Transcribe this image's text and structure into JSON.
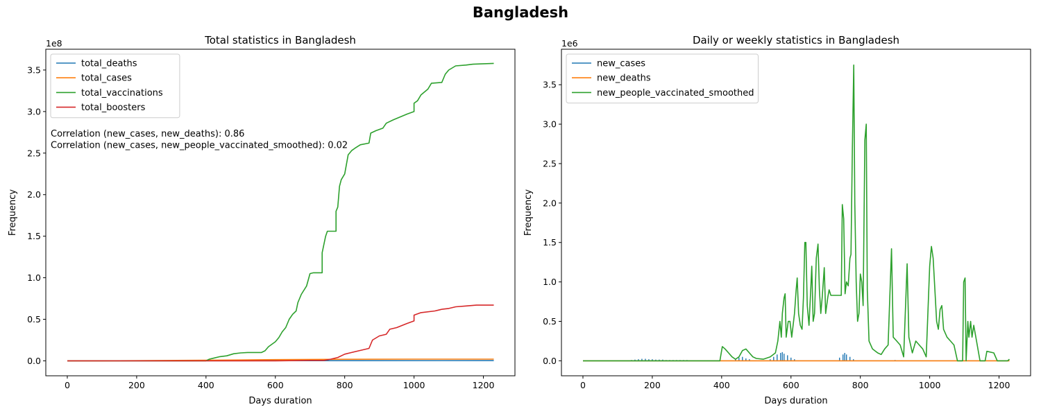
{
  "suptitle": "Bangladesh",
  "colors": {
    "blue": "#1f77b4",
    "orange": "#ff7f0e",
    "green": "#2ca02c",
    "red": "#d62728"
  },
  "chart_data": [
    {
      "type": "line",
      "title": "Total statistics in Bangladesh",
      "xlabel": "Days duration",
      "ylabel": "Frequency",
      "y_scale_label": "1e8",
      "xlim": [
        -62,
        1291
      ],
      "ylim": [
        -0.18,
        3.75
      ],
      "xticks": [
        0,
        200,
        400,
        600,
        800,
        1000,
        1200
      ],
      "yticks": [
        0.0,
        0.5,
        1.0,
        1.5,
        2.0,
        2.5,
        3.0,
        3.5
      ],
      "grid": false,
      "legend_position": "upper-left",
      "annotations": [
        "Correlation (new_cases, new_deaths): 0.86",
        "Correlation (new_cases, new_people_vaccinated_smoothed): 0.02"
      ],
      "series": [
        {
          "name": "total_deaths",
          "color": "#1f77b4",
          "points": [
            [
              0,
              0
            ],
            [
              1230,
              0.003
            ]
          ]
        },
        {
          "name": "total_cases",
          "color": "#ff7f0e",
          "points": [
            [
              0,
              0
            ],
            [
              100,
              0.0005
            ],
            [
              200,
              0.002
            ],
            [
              400,
              0.007
            ],
            [
              500,
              0.01
            ],
            [
              600,
              0.014
            ],
            [
              800,
              0.019
            ],
            [
              1000,
              0.02
            ],
            [
              1230,
              0.02
            ]
          ]
        },
        {
          "name": "total_vaccinations",
          "color": "#2ca02c",
          "points": [
            [
              0,
              0
            ],
            [
              400,
              0
            ],
            [
              410,
              0.02
            ],
            [
              420,
              0.03
            ],
            [
              440,
              0.05
            ],
            [
              460,
              0.06
            ],
            [
              480,
              0.085
            ],
            [
              500,
              0.095
            ],
            [
              520,
              0.1
            ],
            [
              560,
              0.1
            ],
            [
              570,
              0.12
            ],
            [
              580,
              0.17
            ],
            [
              600,
              0.23
            ],
            [
              610,
              0.28
            ],
            [
              620,
              0.35
            ],
            [
              630,
              0.4
            ],
            [
              640,
              0.5
            ],
            [
              650,
              0.56
            ],
            [
              660,
              0.6
            ],
            [
              665,
              0.7
            ],
            [
              675,
              0.8
            ],
            [
              690,
              0.9
            ],
            [
              700,
              1.05
            ],
            [
              710,
              1.06
            ],
            [
              735,
              1.06
            ],
            [
              735,
              1.3
            ],
            [
              740,
              1.4
            ],
            [
              745,
              1.5
            ],
            [
              750,
              1.56
            ],
            [
              775,
              1.56
            ],
            [
              775,
              1.8
            ],
            [
              780,
              1.85
            ],
            [
              785,
              2.1
            ],
            [
              790,
              2.18
            ],
            [
              800,
              2.25
            ],
            [
              810,
              2.48
            ],
            [
              820,
              2.53
            ],
            [
              830,
              2.56
            ],
            [
              845,
              2.6
            ],
            [
              870,
              2.62
            ],
            [
              875,
              2.74
            ],
            [
              890,
              2.77
            ],
            [
              910,
              2.8
            ],
            [
              920,
              2.86
            ],
            [
              940,
              2.9
            ],
            [
              980,
              2.97
            ],
            [
              1000,
              3.0
            ],
            [
              1000,
              3.1
            ],
            [
              1010,
              3.13
            ],
            [
              1020,
              3.2
            ],
            [
              1040,
              3.27
            ],
            [
              1050,
              3.34
            ],
            [
              1080,
              3.35
            ],
            [
              1090,
              3.45
            ],
            [
              1100,
              3.5
            ],
            [
              1120,
              3.55
            ],
            [
              1150,
              3.56
            ],
            [
              1170,
              3.57
            ],
            [
              1230,
              3.58
            ]
          ]
        },
        {
          "name": "total_boosters",
          "color": "#d62728",
          "points": [
            [
              0,
              0
            ],
            [
              600,
              0
            ],
            [
              700,
              0.005
            ],
            [
              740,
              0.005
            ],
            [
              760,
              0.02
            ],
            [
              780,
              0.04
            ],
            [
              800,
              0.08
            ],
            [
              820,
              0.1
            ],
            [
              840,
              0.12
            ],
            [
              870,
              0.15
            ],
            [
              880,
              0.25
            ],
            [
              900,
              0.3
            ],
            [
              920,
              0.32
            ],
            [
              930,
              0.38
            ],
            [
              950,
              0.4
            ],
            [
              980,
              0.45
            ],
            [
              1000,
              0.48
            ],
            [
              1000,
              0.55
            ],
            [
              1020,
              0.58
            ],
            [
              1060,
              0.6
            ],
            [
              1080,
              0.62
            ],
            [
              1100,
              0.63
            ],
            [
              1120,
              0.65
            ],
            [
              1150,
              0.66
            ],
            [
              1180,
              0.67
            ],
            [
              1230,
              0.67
            ]
          ]
        }
      ]
    },
    {
      "type": "line",
      "title": "Daily or weekly statistics in Bangladesh",
      "xlabel": "Days duration",
      "ylabel": "Frequency",
      "y_scale_label": "1e6",
      "xlim": [
        -62,
        1291
      ],
      "ylim": [
        -0.19,
        3.95
      ],
      "xticks": [
        0,
        200,
        400,
        600,
        800,
        1000,
        1200
      ],
      "yticks": [
        0.0,
        0.5,
        1.0,
        1.5,
        2.0,
        2.5,
        3.0,
        3.5
      ],
      "grid": false,
      "legend_position": "upper-left",
      "series": [
        {
          "name": "new_cases",
          "color": "#1f77b4",
          "spikes": [
            [
              140,
              0.01
            ],
            [
              150,
              0.015
            ],
            [
              160,
              0.02
            ],
            [
              170,
              0.025
            ],
            [
              180,
              0.025
            ],
            [
              190,
              0.02
            ],
            [
              200,
              0.02
            ],
            [
              210,
              0.015
            ],
            [
              220,
              0.015
            ],
            [
              230,
              0.015
            ],
            [
              240,
              0.01
            ],
            [
              250,
              0.01
            ],
            [
              260,
              0.01
            ],
            [
              270,
              0.01
            ],
            [
              280,
              0.01
            ],
            [
              290,
              0.01
            ],
            [
              300,
              0.01
            ],
            [
              320,
              0.005
            ],
            [
              340,
              0.005
            ],
            [
              360,
              0.005
            ],
            [
              380,
              0.005
            ],
            [
              440,
              0.02
            ],
            [
              450,
              0.04
            ],
            [
              460,
              0.05
            ],
            [
              470,
              0.03
            ],
            [
              480,
              0.02
            ],
            [
              540,
              0.02
            ],
            [
              550,
              0.05
            ],
            [
              560,
              0.08
            ],
            [
              570,
              0.1
            ],
            [
              575,
              0.11
            ],
            [
              580,
              0.09
            ],
            [
              590,
              0.07
            ],
            [
              600,
              0.04
            ],
            [
              610,
              0.02
            ],
            [
              740,
              0.04
            ],
            [
              750,
              0.08
            ],
            [
              755,
              0.1
            ],
            [
              760,
              0.08
            ],
            [
              770,
              0.05
            ],
            [
              780,
              0.02
            ],
            [
              900,
              0.01
            ],
            [
              920,
              0.005
            ],
            [
              1100,
              0.005
            ]
          ]
        },
        {
          "name": "new_deaths",
          "color": "#ff7f0e",
          "points": [
            [
              0,
              0
            ],
            [
              1230,
              0
            ]
          ]
        },
        {
          "name": "new_people_vaccinated_smoothed",
          "color": "#2ca02c",
          "points": [
            [
              0,
              0
            ],
            [
              395,
              0
            ],
            [
              402,
              0.18
            ],
            [
              410,
              0.15
            ],
            [
              420,
              0.1
            ],
            [
              430,
              0.05
            ],
            [
              440,
              0.02
            ],
            [
              450,
              0.05
            ],
            [
              460,
              0.13
            ],
            [
              470,
              0.15
            ],
            [
              480,
              0.1
            ],
            [
              490,
              0.05
            ],
            [
              500,
              0.03
            ],
            [
              520,
              0.02
            ],
            [
              540,
              0.05
            ],
            [
              555,
              0.1
            ],
            [
              562,
              0.25
            ],
            [
              568,
              0.5
            ],
            [
              572,
              0.3
            ],
            [
              575,
              0.6
            ],
            [
              580,
              0.8
            ],
            [
              583,
              0.85
            ],
            [
              586,
              0.3
            ],
            [
              592,
              0.5
            ],
            [
              597,
              0.5
            ],
            [
              602,
              0.3
            ],
            [
              610,
              0.6
            ],
            [
              615,
              0.9
            ],
            [
              618,
              1.05
            ],
            [
              622,
              0.6
            ],
            [
              627,
              0.45
            ],
            [
              632,
              0.4
            ],
            [
              636,
              0.8
            ],
            [
              640,
              1.5
            ],
            [
              643,
              1.5
            ],
            [
              647,
              0.7
            ],
            [
              652,
              0.45
            ],
            [
              657,
              0.9
            ],
            [
              660,
              1.2
            ],
            [
              664,
              0.5
            ],
            [
              668,
              0.6
            ],
            [
              673,
              1.3
            ],
            [
              678,
              1.48
            ],
            [
              682,
              0.9
            ],
            [
              686,
              0.6
            ],
            [
              690,
              0.8
            ],
            [
              696,
              1.18
            ],
            [
              700,
              0.6
            ],
            [
              706,
              0.8
            ],
            [
              710,
              0.9
            ],
            [
              715,
              0.83
            ],
            [
              745,
              0.83
            ],
            [
              748,
              1.98
            ],
            [
              752,
              1.8
            ],
            [
              756,
              0.85
            ],
            [
              760,
              1.0
            ],
            [
              765,
              0.95
            ],
            [
              770,
              1.3
            ],
            [
              773,
              1.35
            ],
            [
              777,
              2.7
            ],
            [
              781,
              3.75
            ],
            [
              784,
              2.0
            ],
            [
              788,
              1.0
            ],
            [
              792,
              0.5
            ],
            [
              796,
              0.6
            ],
            [
              800,
              1.1
            ],
            [
              804,
              1.0
            ],
            [
              808,
              0.7
            ],
            [
              813,
              2.8
            ],
            [
              817,
              3.0
            ],
            [
              820,
              0.9
            ],
            [
              825,
              0.25
            ],
            [
              835,
              0.15
            ],
            [
              850,
              0.1
            ],
            [
              860,
              0.08
            ],
            [
              870,
              0.15
            ],
            [
              880,
              0.2
            ],
            [
              890,
              1.42
            ],
            [
              895,
              0.3
            ],
            [
              905,
              0.25
            ],
            [
              915,
              0.2
            ],
            [
              925,
              0.05
            ],
            [
              935,
              1.23
            ],
            [
              940,
              0.3
            ],
            [
              950,
              0.1
            ],
            [
              960,
              0.25
            ],
            [
              970,
              0.2
            ],
            [
              980,
              0.15
            ],
            [
              990,
              0.05
            ],
            [
              1000,
              1.2
            ],
            [
              1005,
              1.45
            ],
            [
              1010,
              1.3
            ],
            [
              1020,
              0.5
            ],
            [
              1025,
              0.4
            ],
            [
              1030,
              0.65
            ],
            [
              1035,
              0.7
            ],
            [
              1040,
              0.4
            ],
            [
              1050,
              0.3
            ],
            [
              1060,
              0.25
            ],
            [
              1070,
              0.2
            ],
            [
              1080,
              0.0
            ],
            [
              1095,
              0.0
            ],
            [
              1098,
              1.0
            ],
            [
              1102,
              1.05
            ],
            [
              1105,
              0.0
            ],
            [
              1110,
              0.5
            ],
            [
              1113,
              0.3
            ],
            [
              1118,
              0.5
            ],
            [
              1122,
              0.3
            ],
            [
              1127,
              0.45
            ],
            [
              1135,
              0.25
            ],
            [
              1145,
              0.0
            ],
            [
              1160,
              0.0
            ],
            [
              1165,
              0.12
            ],
            [
              1185,
              0.1
            ],
            [
              1195,
              0.0
            ],
            [
              1225,
              0.0
            ],
            [
              1230,
              0.02
            ]
          ]
        }
      ]
    }
  ]
}
